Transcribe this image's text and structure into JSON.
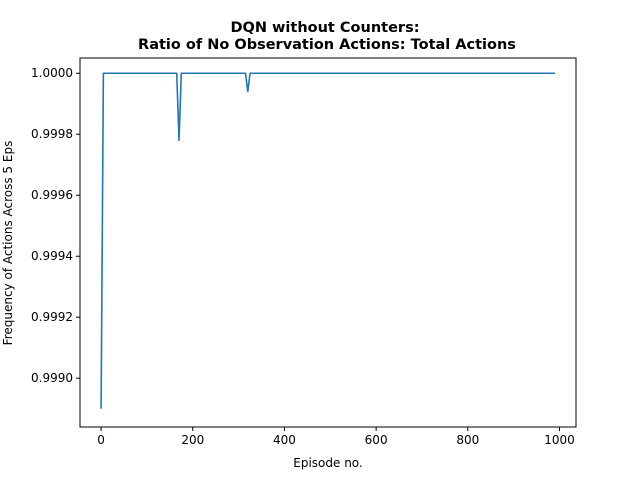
{
  "chart_data": {
    "type": "line",
    "title": [
      "DQN without Counters:",
      "Ratio of No Observation Actions: Total Actions"
    ],
    "xlabel": "Episode no.",
    "ylabel": "Frequency of Actions Across 5 Eps",
    "xlim": [
      -46,
      1036
    ],
    "ylim": [
      0.99884,
      1.00005
    ],
    "xticks": [
      0,
      200,
      400,
      600,
      800,
      1000
    ],
    "xtick_labels": [
      "0",
      "200",
      "400",
      "600",
      "800",
      "1000"
    ],
    "yticks": [
      0.999,
      0.9992,
      0.9994,
      0.9996,
      0.9998,
      1.0
    ],
    "ytick_labels": [
      "0.9990",
      "0.9992",
      "0.9994",
      "0.9996",
      "0.9998",
      "1.0000"
    ],
    "grid": false,
    "line_color": "#1f77b4",
    "series": [
      {
        "x": [
          0,
          5,
          10,
          165,
          170,
          175,
          315,
          320,
          325,
          990
        ],
        "y": [
          0.9989,
          1.0,
          1.0,
          1.0,
          0.99978,
          1.0,
          1.0,
          0.99994,
          1.0,
          1.0
        ]
      }
    ]
  }
}
